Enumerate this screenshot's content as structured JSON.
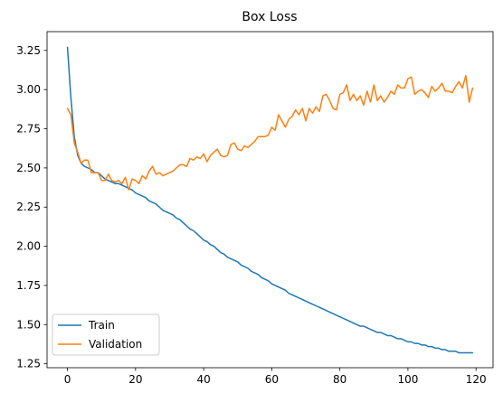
{
  "chart_data": {
    "type": "line",
    "title": "Box Loss",
    "xlabel": "",
    "ylabel": "",
    "xlim": [
      -6,
      125
    ],
    "ylim": [
      1.225,
      3.37
    ],
    "xticks": [
      0,
      20,
      40,
      60,
      80,
      100,
      120
    ],
    "yticks": [
      1.25,
      1.5,
      1.75,
      2.0,
      2.25,
      2.5,
      2.75,
      3.0,
      3.25
    ],
    "ytick_labels": [
      "1.25",
      "1.50",
      "1.75",
      "2.00",
      "2.25",
      "2.50",
      "2.75",
      "3.00",
      "3.25"
    ],
    "grid": false,
    "legend_position": "lower-left",
    "x": [
      0,
      1,
      2,
      3,
      4,
      5,
      6,
      7,
      8,
      9,
      10,
      11,
      12,
      13,
      14,
      15,
      16,
      17,
      18,
      19,
      20,
      21,
      22,
      23,
      24,
      25,
      26,
      27,
      28,
      29,
      30,
      31,
      32,
      33,
      34,
      35,
      36,
      37,
      38,
      39,
      40,
      41,
      42,
      43,
      44,
      45,
      46,
      47,
      48,
      49,
      50,
      51,
      52,
      53,
      54,
      55,
      56,
      57,
      58,
      59,
      60,
      61,
      62,
      63,
      64,
      65,
      66,
      67,
      68,
      69,
      70,
      71,
      72,
      73,
      74,
      75,
      76,
      77,
      78,
      79,
      80,
      81,
      82,
      83,
      84,
      85,
      86,
      87,
      88,
      89,
      90,
      91,
      92,
      93,
      94,
      95,
      96,
      97,
      98,
      99,
      100,
      101,
      102,
      103,
      104,
      105,
      106,
      107,
      108,
      109,
      110,
      111,
      112,
      113,
      114,
      115,
      116,
      117,
      118,
      119
    ],
    "series": [
      {
        "name": "Train",
        "color": "#1f77b4",
        "values": [
          3.27,
          2.95,
          2.7,
          2.58,
          2.53,
          2.51,
          2.5,
          2.49,
          2.47,
          2.47,
          2.45,
          2.43,
          2.42,
          2.41,
          2.4,
          2.4,
          2.39,
          2.38,
          2.37,
          2.36,
          2.34,
          2.33,
          2.32,
          2.31,
          2.29,
          2.28,
          2.27,
          2.25,
          2.23,
          2.22,
          2.21,
          2.2,
          2.18,
          2.17,
          2.15,
          2.13,
          2.11,
          2.1,
          2.08,
          2.06,
          2.04,
          2.03,
          2.01,
          2.0,
          1.98,
          1.96,
          1.95,
          1.93,
          1.92,
          1.91,
          1.9,
          1.88,
          1.87,
          1.86,
          1.84,
          1.83,
          1.82,
          1.8,
          1.79,
          1.78,
          1.76,
          1.75,
          1.74,
          1.73,
          1.72,
          1.7,
          1.69,
          1.68,
          1.67,
          1.66,
          1.65,
          1.64,
          1.63,
          1.62,
          1.61,
          1.6,
          1.59,
          1.58,
          1.57,
          1.56,
          1.55,
          1.54,
          1.53,
          1.52,
          1.51,
          1.5,
          1.49,
          1.49,
          1.48,
          1.47,
          1.46,
          1.45,
          1.45,
          1.44,
          1.43,
          1.43,
          1.42,
          1.41,
          1.41,
          1.4,
          1.39,
          1.39,
          1.38,
          1.38,
          1.37,
          1.37,
          1.36,
          1.36,
          1.35,
          1.35,
          1.34,
          1.34,
          1.33,
          1.33,
          1.33,
          1.32,
          1.32,
          1.32,
          1.32,
          1.32
        ]
      },
      {
        "name": "Validation",
        "color": "#ff7f0e",
        "values": [
          2.88,
          2.84,
          2.66,
          2.6,
          2.53,
          2.55,
          2.55,
          2.47,
          2.47,
          2.47,
          2.42,
          2.42,
          2.46,
          2.42,
          2.41,
          2.42,
          2.4,
          2.44,
          2.36,
          2.43,
          2.42,
          2.4,
          2.45,
          2.43,
          2.48,
          2.51,
          2.46,
          2.47,
          2.45,
          2.46,
          2.47,
          2.48,
          2.5,
          2.52,
          2.52,
          2.51,
          2.56,
          2.55,
          2.57,
          2.56,
          2.59,
          2.54,
          2.58,
          2.6,
          2.62,
          2.58,
          2.57,
          2.58,
          2.65,
          2.66,
          2.62,
          2.61,
          2.64,
          2.63,
          2.65,
          2.67,
          2.7,
          2.7,
          2.7,
          2.71,
          2.76,
          2.74,
          2.84,
          2.8,
          2.76,
          2.81,
          2.83,
          2.87,
          2.84,
          2.88,
          2.8,
          2.88,
          2.85,
          2.89,
          2.86,
          2.96,
          2.97,
          2.93,
          2.88,
          2.87,
          2.97,
          2.98,
          3.03,
          2.93,
          2.97,
          2.93,
          2.96,
          2.9,
          2.99,
          2.92,
          3.03,
          2.93,
          2.96,
          2.92,
          2.95,
          2.99,
          2.97,
          3.03,
          3.01,
          3.01,
          3.07,
          3.08,
          2.97,
          2.99,
          3.0,
          2.98,
          2.95,
          3.02,
          2.99,
          3.01,
          3.04,
          2.99,
          2.99,
          2.98,
          3.02,
          3.05,
          3.01,
          3.09,
          2.92,
          3.01
        ]
      }
    ]
  }
}
